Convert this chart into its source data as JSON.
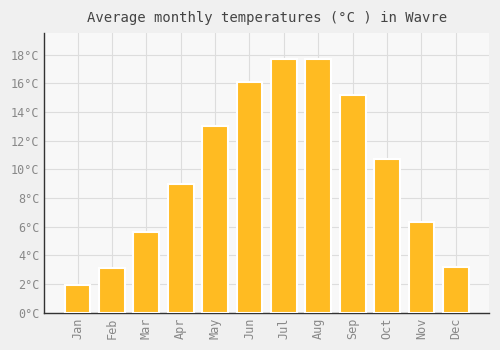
{
  "title": "Average monthly temperatures (°C ) in Wavre",
  "months": [
    "Jan",
    "Feb",
    "Mar",
    "Apr",
    "May",
    "Jun",
    "Jul",
    "Aug",
    "Sep",
    "Oct",
    "Nov",
    "Dec"
  ],
  "values": [
    1.9,
    3.1,
    5.6,
    9.0,
    13.0,
    16.1,
    17.7,
    17.7,
    15.2,
    10.7,
    6.3,
    3.2
  ],
  "bar_color": "#FFBB22",
  "bar_edge_color": "#FFFFFF",
  "background_color": "#F0F0F0",
  "plot_bg_color": "#F8F8F8",
  "grid_color": "#DDDDDD",
  "text_color": "#888888",
  "axis_color": "#333333",
  "ylim": [
    0,
    19.5
  ],
  "yticks": [
    0,
    2,
    4,
    6,
    8,
    10,
    12,
    14,
    16,
    18
  ],
  "title_fontsize": 10,
  "tick_fontsize": 8.5
}
